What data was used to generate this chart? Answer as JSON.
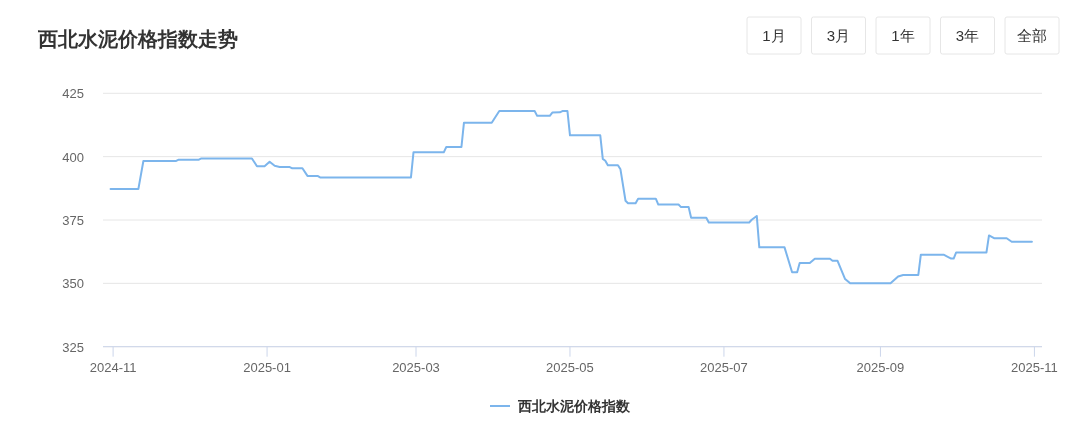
{
  "chart_data": {
    "type": "line",
    "title": "西北水泥价格指数走势",
    "annotations": [
      "1月",
      "3月",
      "1年",
      "3年",
      "全部"
    ],
    "xlim": [
      "2024-10-28",
      "2025-11-04"
    ],
    "xticks": [
      "2024-11",
      "2025-01",
      "2025-03",
      "2025-05",
      "2025-07",
      "2025-09",
      "2025-11"
    ],
    "ylim": [
      325,
      425
    ],
    "yticks": [
      325,
      350,
      375,
      400,
      425
    ],
    "grid": "y",
    "legend": "bottom",
    "series": [
      {
        "name": "西北水泥价格指数",
        "color": "#7cb5ec",
        "x": [
          "2024-10-31",
          "2024-11-11",
          "2024-11-13",
          "2024-11-26",
          "2024-11-27",
          "2024-12-05",
          "2024-12-06",
          "2024-12-26",
          "2024-12-28",
          "2024-12-31",
          "2025-01-02",
          "2025-01-04",
          "2025-01-06",
          "2025-01-10",
          "2025-01-11",
          "2025-01-15",
          "2025-01-17",
          "2025-01-21",
          "2025-01-22",
          "2025-02-27",
          "2025-02-28",
          "2025-03-12",
          "2025-03-13",
          "2025-03-19",
          "2025-03-20",
          "2025-03-31",
          "2025-04-03",
          "2025-04-17",
          "2025-04-18",
          "2025-04-23",
          "2025-04-24",
          "2025-04-27",
          "2025-04-28",
          "2025-04-30",
          "2025-05-01",
          "2025-05-13",
          "2025-05-14",
          "2025-05-15",
          "2025-05-16",
          "2025-05-20",
          "2025-05-21",
          "2025-05-23",
          "2025-05-24",
          "2025-05-27",
          "2025-05-28",
          "2025-06-04",
          "2025-06-05",
          "2025-06-13",
          "2025-06-14",
          "2025-06-17",
          "2025-06-18",
          "2025-06-24",
          "2025-06-25",
          "2025-07-11",
          "2025-07-12",
          "2025-07-14",
          "2025-07-15",
          "2025-07-25",
          "2025-07-28",
          "2025-07-30",
          "2025-07-31",
          "2025-08-04",
          "2025-08-06",
          "2025-08-12",
          "2025-08-13",
          "2025-08-15",
          "2025-08-18",
          "2025-08-20",
          "2025-09-05",
          "2025-09-08",
          "2025-09-10",
          "2025-09-16",
          "2025-09-17",
          "2025-09-26",
          "2025-09-29",
          "2025-09-30",
          "2025-10-01",
          "2025-10-13",
          "2025-10-14",
          "2025-10-16",
          "2025-10-21",
          "2025-10-23",
          "2025-10-31"
        ],
        "values": [
          387.2,
          387.2,
          398.3,
          398.3,
          398.8,
          398.8,
          399.3,
          399.3,
          396.2,
          396.2,
          398.0,
          396.4,
          395.9,
          395.9,
          395.4,
          395.4,
          392.4,
          392.4,
          391.8,
          391.8,
          401.7,
          401.7,
          403.8,
          403.8,
          413.4,
          413.4,
          418.0,
          418.0,
          416.1,
          416.1,
          417.4,
          417.5,
          418.0,
          418.0,
          408.4,
          408.4,
          399.1,
          398.4,
          396.6,
          396.6,
          395.0,
          382.6,
          381.6,
          381.6,
          383.4,
          383.4,
          381.1,
          381.1,
          380.1,
          380.1,
          375.9,
          375.9,
          374.0,
          374.0,
          375.1,
          376.6,
          364.2,
          364.2,
          354.4,
          354.4,
          358.0,
          358.0,
          359.7,
          359.7,
          358.9,
          358.9,
          351.7,
          350.0,
          350.0,
          352.7,
          353.3,
          353.3,
          361.3,
          361.3,
          359.8,
          359.8,
          362.2,
          362.2,
          368.9,
          367.8,
          367.8,
          366.4,
          366.4
        ]
      }
    ]
  }
}
